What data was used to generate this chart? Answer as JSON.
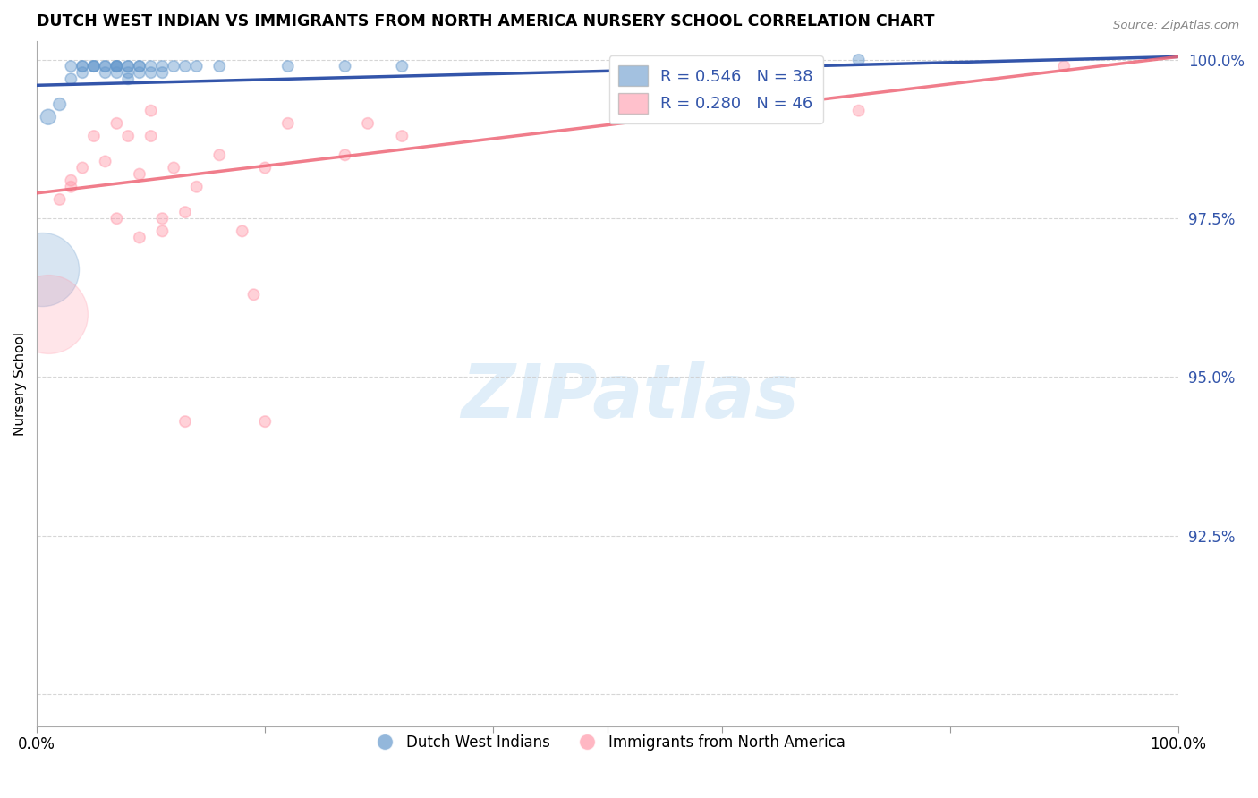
{
  "title": "DUTCH WEST INDIAN VS IMMIGRANTS FROM NORTH AMERICA NURSERY SCHOOL CORRELATION CHART",
  "source": "Source: ZipAtlas.com",
  "ylabel": "Nursery School",
  "xlim": [
    0.0,
    1.0
  ],
  "ylim": [
    0.895,
    1.003
  ],
  "ytick_vals": [
    0.9,
    0.925,
    0.95,
    0.975,
    1.0
  ],
  "ytick_labels": [
    "",
    "92.5%",
    "95.0%",
    "97.5%",
    "100.0%"
  ],
  "legend1_label": "R = 0.546   N = 38",
  "legend2_label": "R = 0.280   N = 46",
  "legend_bottom1": "Dutch West Indians",
  "legend_bottom2": "Immigrants from North America",
  "blue_color": "#6699CC",
  "pink_color": "#FF99AA",
  "blue_line_color": "#3355AA",
  "pink_line_color": "#EE6677",
  "blue_scatter_x": [
    0.01,
    0.02,
    0.03,
    0.03,
    0.04,
    0.04,
    0.04,
    0.05,
    0.05,
    0.05,
    0.06,
    0.06,
    0.06,
    0.07,
    0.07,
    0.07,
    0.07,
    0.07,
    0.08,
    0.08,
    0.08,
    0.08,
    0.09,
    0.09,
    0.09,
    0.1,
    0.1,
    0.11,
    0.11,
    0.12,
    0.13,
    0.14,
    0.16,
    0.22,
    0.27,
    0.32,
    0.59,
    0.72
  ],
  "blue_scatter_y": [
    0.991,
    0.993,
    0.999,
    0.997,
    0.999,
    0.999,
    0.998,
    0.999,
    0.999,
    0.999,
    0.999,
    0.999,
    0.998,
    0.999,
    0.999,
    0.999,
    0.999,
    0.998,
    0.999,
    0.999,
    0.998,
    0.997,
    0.999,
    0.999,
    0.998,
    0.999,
    0.998,
    0.999,
    0.998,
    0.999,
    0.999,
    0.999,
    0.999,
    0.999,
    0.999,
    0.999,
    0.999,
    1.0
  ],
  "blue_scatter_s": [
    150,
    100,
    80,
    80,
    80,
    80,
    80,
    80,
    80,
    80,
    80,
    80,
    80,
    80,
    80,
    80,
    80,
    80,
    80,
    80,
    80,
    80,
    80,
    80,
    80,
    80,
    80,
    80,
    80,
    80,
    80,
    80,
    80,
    80,
    80,
    80,
    80,
    80
  ],
  "blue_large_x": [
    0.005
  ],
  "blue_large_y": [
    0.967
  ],
  "blue_large_s": [
    3500
  ],
  "pink_scatter_x": [
    0.02,
    0.03,
    0.03,
    0.04,
    0.05,
    0.06,
    0.07,
    0.08,
    0.09,
    0.1,
    0.1,
    0.11,
    0.12,
    0.13,
    0.14,
    0.16,
    0.18,
    0.2,
    0.22,
    0.27,
    0.29,
    0.32,
    0.59,
    0.72,
    0.9
  ],
  "pink_scatter_y": [
    0.978,
    0.98,
    0.981,
    0.983,
    0.988,
    0.984,
    0.99,
    0.988,
    0.982,
    0.988,
    0.992,
    0.975,
    0.983,
    0.976,
    0.98,
    0.985,
    0.973,
    0.983,
    0.99,
    0.985,
    0.99,
    0.988,
    0.999,
    0.992,
    0.999
  ],
  "pink_scatter_s": [
    80,
    80,
    80,
    80,
    80,
    80,
    80,
    80,
    80,
    80,
    80,
    80,
    80,
    80,
    80,
    80,
    80,
    80,
    80,
    80,
    80,
    80,
    80,
    80,
    80
  ],
  "pink_outlier_x": [
    0.07,
    0.09,
    0.11,
    0.19,
    0.13,
    0.2
  ],
  "pink_outlier_y": [
    0.975,
    0.972,
    0.973,
    0.963,
    0.943,
    0.943
  ],
  "pink_outlier_s": [
    80,
    80,
    80,
    80,
    80,
    80
  ],
  "pink_large_x": [
    0.01
  ],
  "pink_large_y": [
    0.96
  ],
  "pink_large_s": [
    4000
  ],
  "blue_trendline_x": [
    0.0,
    1.0
  ],
  "blue_trendline_y": [
    0.996,
    1.0005
  ],
  "pink_trendline_x": [
    0.0,
    1.0
  ],
  "pink_trendline_y": [
    0.979,
    1.0005
  ],
  "watermark_text": "ZIPatlas",
  "background_color": "#ffffff",
  "grid_color": "#cccccc"
}
